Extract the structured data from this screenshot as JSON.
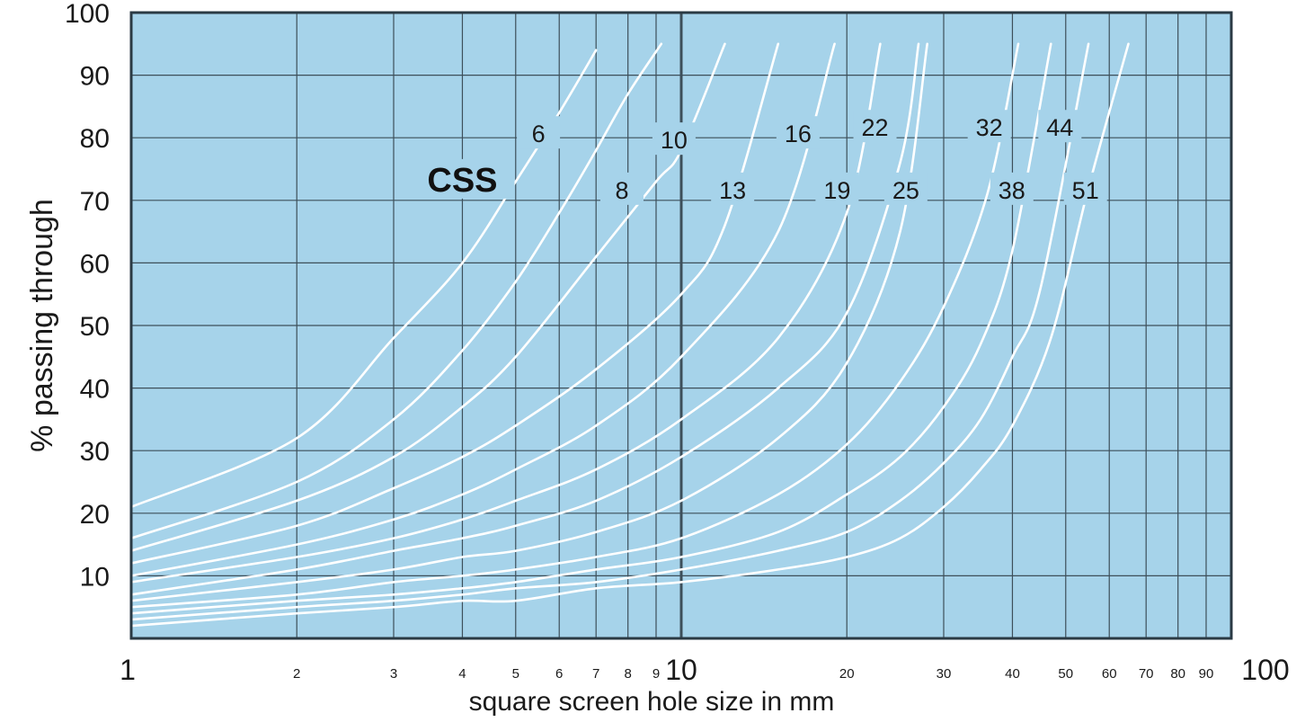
{
  "colors": {
    "plot_background": "#a6d3ea",
    "grid": "#3d4f5a",
    "curve": "#ffffff",
    "text": "#1a1a1a"
  },
  "chart_data": {
    "type": "line",
    "title": "",
    "xlabel": "square screen hole size in mm",
    "ylabel": "% passing through",
    "x_scale": "log",
    "xlim": [
      1,
      100
    ],
    "ylim": [
      0,
      100
    ],
    "grid": true,
    "y_ticks": [
      10,
      20,
      30,
      40,
      50,
      60,
      70,
      80,
      90,
      100
    ],
    "x_tick_labels": [
      {
        "value": 1,
        "label": "1",
        "size": "big"
      },
      {
        "value": 2,
        "label": "2",
        "size": "small"
      },
      {
        "value": 3,
        "label": "3",
        "size": "small"
      },
      {
        "value": 4,
        "label": "4",
        "size": "small"
      },
      {
        "value": 5,
        "label": "5",
        "size": "small"
      },
      {
        "value": 6,
        "label": "6",
        "size": "small"
      },
      {
        "value": 7,
        "label": "7",
        "size": "small"
      },
      {
        "value": 8,
        "label": "8",
        "size": "small"
      },
      {
        "value": 9,
        "label": "9",
        "size": "small"
      },
      {
        "value": 10,
        "label": "10",
        "size": "big"
      },
      {
        "value": 20,
        "label": "20",
        "size": "small"
      },
      {
        "value": 30,
        "label": "30",
        "size": "small"
      },
      {
        "value": 40,
        "label": "40",
        "size": "small"
      },
      {
        "value": 50,
        "label": "50",
        "size": "small"
      },
      {
        "value": 60,
        "label": "60",
        "size": "small"
      },
      {
        "value": 70,
        "label": "70",
        "size": "small"
      },
      {
        "value": 80,
        "label": "80",
        "size": "small"
      },
      {
        "value": 90,
        "label": "90",
        "size": "small"
      },
      {
        "value": 100,
        "label": "100",
        "size": "big"
      }
    ],
    "group_label": "CSS",
    "series": [
      {
        "name": "6",
        "points": [
          [
            1,
            21
          ],
          [
            2,
            32
          ],
          [
            3,
            48
          ],
          [
            4,
            60
          ],
          [
            5,
            73
          ],
          [
            6,
            84
          ],
          [
            7,
            94
          ]
        ]
      },
      {
        "name": "8",
        "points": [
          [
            1,
            16
          ],
          [
            2,
            25
          ],
          [
            3,
            35
          ],
          [
            4,
            46
          ],
          [
            5,
            57
          ],
          [
            6,
            68
          ],
          [
            7,
            78
          ],
          [
            8,
            87
          ],
          [
            9.2,
            95
          ]
        ]
      },
      {
        "name": "10",
        "points": [
          [
            1,
            14
          ],
          [
            2,
            22
          ],
          [
            3,
            29
          ],
          [
            4,
            37
          ],
          [
            5,
            45
          ],
          [
            7,
            61
          ],
          [
            9,
            73
          ],
          [
            10,
            78
          ],
          [
            12,
            95
          ]
        ]
      },
      {
        "name": "13",
        "points": [
          [
            1,
            12
          ],
          [
            2,
            18
          ],
          [
            3,
            24
          ],
          [
            4,
            29
          ],
          [
            5,
            34
          ],
          [
            7,
            43
          ],
          [
            10,
            55
          ],
          [
            12,
            66
          ],
          [
            15,
            95
          ]
        ]
      },
      {
        "name": "16",
        "points": [
          [
            1,
            10
          ],
          [
            2,
            15
          ],
          [
            3,
            19
          ],
          [
            4,
            23
          ],
          [
            5,
            27
          ],
          [
            7,
            34
          ],
          [
            10,
            45
          ],
          [
            15,
            65
          ],
          [
            19,
            95
          ]
        ]
      },
      {
        "name": "19",
        "points": [
          [
            1,
            9
          ],
          [
            2,
            13
          ],
          [
            3,
            16
          ],
          [
            4,
            19
          ],
          [
            5,
            22
          ],
          [
            7,
            27
          ],
          [
            10,
            35
          ],
          [
            15,
            48
          ],
          [
            20,
            68
          ],
          [
            23,
            95
          ]
        ]
      },
      {
        "name": "22",
        "points": [
          [
            1,
            7
          ],
          [
            2,
            11
          ],
          [
            3,
            14
          ],
          [
            4,
            16
          ],
          [
            5,
            18
          ],
          [
            7,
            22
          ],
          [
            10,
            29
          ],
          [
            15,
            40
          ],
          [
            20,
            52
          ],
          [
            25,
            76
          ],
          [
            27,
            95
          ]
        ]
      },
      {
        "name": "25",
        "points": [
          [
            1,
            6
          ],
          [
            2,
            9
          ],
          [
            3,
            11
          ],
          [
            4,
            13
          ],
          [
            5,
            14
          ],
          [
            7,
            17
          ],
          [
            10,
            22
          ],
          [
            15,
            32
          ],
          [
            20,
            44
          ],
          [
            25,
            65
          ],
          [
            28,
            95
          ]
        ]
      },
      {
        "name": "32",
        "points": [
          [
            1,
            5
          ],
          [
            2,
            7
          ],
          [
            3,
            9
          ],
          [
            4,
            10
          ],
          [
            5,
            11
          ],
          [
            7,
            13
          ],
          [
            10,
            16
          ],
          [
            15,
            23
          ],
          [
            20,
            31
          ],
          [
            25,
            41
          ],
          [
            30,
            53
          ],
          [
            36,
            71
          ],
          [
            41,
            95
          ]
        ]
      },
      {
        "name": "38",
        "points": [
          [
            1,
            4
          ],
          [
            2,
            6
          ],
          [
            3,
            7
          ],
          [
            4,
            8
          ],
          [
            5,
            9
          ],
          [
            7,
            11
          ],
          [
            10,
            13
          ],
          [
            15,
            17
          ],
          [
            20,
            23
          ],
          [
            25,
            29
          ],
          [
            30,
            37
          ],
          [
            35,
            47
          ],
          [
            40,
            62
          ],
          [
            47,
            95
          ]
        ]
      },
      {
        "name": "44",
        "points": [
          [
            1,
            3
          ],
          [
            2,
            5
          ],
          [
            3,
            6
          ],
          [
            4,
            7
          ],
          [
            5,
            8
          ],
          [
            7,
            9
          ],
          [
            10,
            11
          ],
          [
            15,
            14
          ],
          [
            20,
            17
          ],
          [
            25,
            22
          ],
          [
            30,
            28
          ],
          [
            35,
            35
          ],
          [
            40,
            45
          ],
          [
            45,
            56
          ],
          [
            55,
            95
          ]
        ]
      },
      {
        "name": "51",
        "points": [
          [
            1,
            2
          ],
          [
            2,
            4
          ],
          [
            3,
            5
          ],
          [
            4,
            6
          ],
          [
            5,
            6
          ],
          [
            7,
            8
          ],
          [
            10,
            9
          ],
          [
            15,
            11
          ],
          [
            20,
            13
          ],
          [
            25,
            16
          ],
          [
            30,
            21
          ],
          [
            35,
            27
          ],
          [
            40,
            34
          ],
          [
            47,
            48
          ],
          [
            55,
            72
          ],
          [
            65,
            95
          ]
        ]
      }
    ],
    "labels": [
      {
        "text": "6",
        "x": 5.5,
        "y": 80
      },
      {
        "text": "8",
        "x": 7.8,
        "y": 71
      },
      {
        "text": "10",
        "x": 9.7,
        "y": 79
      },
      {
        "text": "13",
        "x": 12.4,
        "y": 71
      },
      {
        "text": "16",
        "x": 16.3,
        "y": 80
      },
      {
        "text": "19",
        "x": 19.2,
        "y": 71
      },
      {
        "text": "22",
        "x": 22.5,
        "y": 81
      },
      {
        "text": "25",
        "x": 25.6,
        "y": 71
      },
      {
        "text": "32",
        "x": 36.3,
        "y": 81
      },
      {
        "text": "38",
        "x": 39.9,
        "y": 71
      },
      {
        "text": "44",
        "x": 48.8,
        "y": 81
      },
      {
        "text": "51",
        "x": 54.3,
        "y": 71
      }
    ],
    "group_label_pos": {
      "x": 4,
      "y": 72
    }
  }
}
